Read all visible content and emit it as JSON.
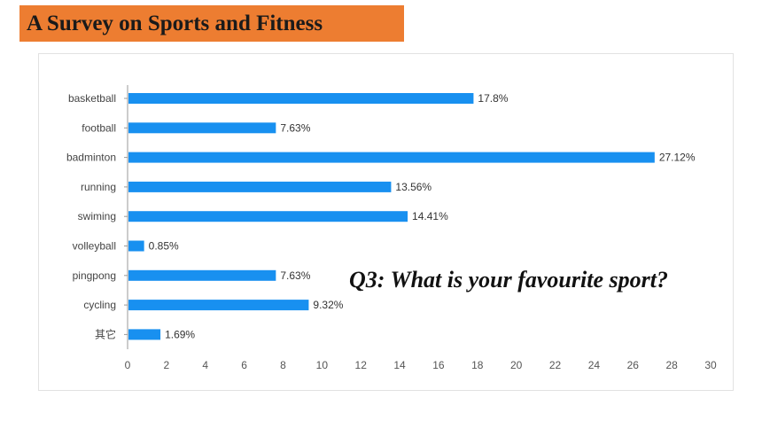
{
  "header": {
    "title": "A Survey on Sports and Fitness"
  },
  "question": "Q3: What is your favourite sport?",
  "colors": {
    "banner": "#ED7D31",
    "bar": "#1890F0"
  },
  "chart_data": {
    "type": "bar",
    "orientation": "horizontal",
    "categories": [
      "basketball",
      "football",
      "badminton",
      "running",
      "swiming",
      "volleyball",
      "pingpong",
      "cycling",
      "其它"
    ],
    "values": [
      17.8,
      7.63,
      27.12,
      13.56,
      14.41,
      0.85,
      7.63,
      9.32,
      1.69
    ],
    "value_labels": [
      "17.8%",
      "7.63%",
      "27.12%",
      "13.56%",
      "14.41%",
      "0.85%",
      "7.63%",
      "9.32%",
      "1.69%"
    ],
    "xlim": [
      0,
      30
    ],
    "xticks": [
      0,
      2,
      4,
      6,
      8,
      10,
      12,
      14,
      16,
      18,
      20,
      22,
      24,
      26,
      28,
      30
    ],
    "grid": false,
    "legend": "none"
  }
}
